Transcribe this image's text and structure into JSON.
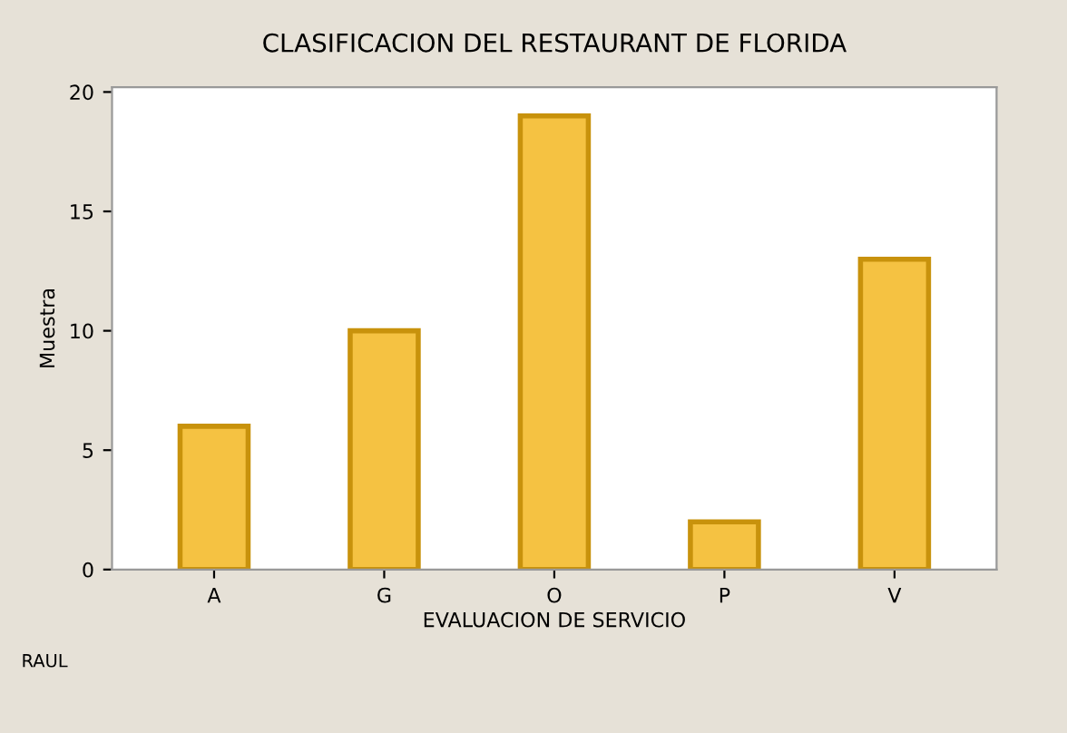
{
  "chart_data": {
    "type": "bar",
    "title": "CLASIFICACION DEL RESTAURANT DE FLORIDA",
    "xlabel": "EVALUACION DE SERVICIO",
    "ylabel": "Muestra",
    "categories": [
      "A",
      "G",
      "O",
      "P",
      "V"
    ],
    "values": [
      6,
      10,
      19,
      2,
      13
    ],
    "color": "#f5c242",
    "ylim": [
      0,
      20.2
    ],
    "yticks": [
      0,
      5,
      10,
      15,
      20
    ],
    "grid": false,
    "legend": false,
    "annotations": [
      "RAUL"
    ]
  }
}
